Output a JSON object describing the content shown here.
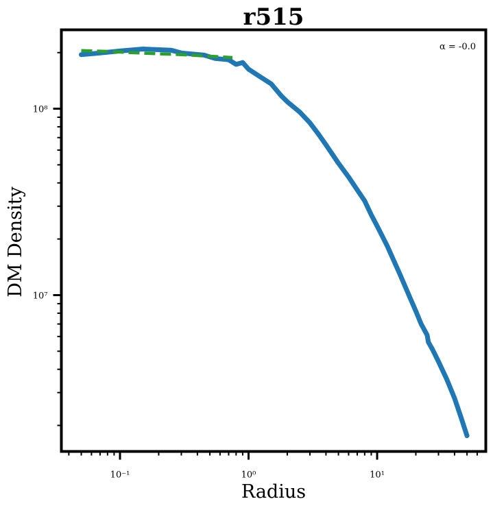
{
  "chart_data": {
    "type": "line",
    "title": "r515",
    "xlabel": "Radius",
    "ylabel": "DM Density",
    "xscale": "log",
    "yscale": "log",
    "xlim": [
      0.035,
      70
    ],
    "ylim": [
      1450000.0,
      265000000.0
    ],
    "grid": false,
    "annotation": "α = -0.0",
    "x_ticks": [
      {
        "value": 0.1,
        "label": "10⁻¹"
      },
      {
        "value": 1,
        "label": "10⁰"
      },
      {
        "value": 10,
        "label": "10¹"
      }
    ],
    "y_ticks": [
      {
        "value": 10000000,
        "label": "10⁷"
      },
      {
        "value": 100000000,
        "label": "10⁸"
      }
    ],
    "series": [
      {
        "color": "#1f77b4",
        "style": "solid",
        "x": [
          0.05,
          0.07,
          0.1,
          0.15,
          0.25,
          0.3,
          0.45,
          0.55,
          0.7,
          0.8,
          0.9,
          1.0,
          1.2,
          1.5,
          1.8,
          2.0,
          2.5,
          3.0,
          3.5,
          4.0,
          5.0,
          6.0,
          7.0,
          8.0,
          9.0,
          10.0,
          12.0,
          15.0,
          18.0,
          20.0,
          22.0,
          24.5,
          25.0,
          27.0,
          30.0,
          35.0,
          40.0,
          45.0,
          50.0
        ],
        "y": [
          195000000,
          199000000,
          204000000,
          209000000,
          206000000,
          199000000,
          194000000,
          186000000,
          183000000,
          173000000,
          177000000,
          163000000,
          150000000,
          136000000,
          117000000,
          109000000,
          96000000,
          84000000,
          73000000,
          64000000,
          51000000,
          43000000,
          36700000,
          32000000,
          27000000,
          23500000,
          18300000,
          13000000,
          9700000,
          8200000,
          7000000,
          6100000,
          5600000,
          5100000,
          4400000,
          3500000,
          2800000,
          2200000,
          1760000
        ]
      },
      {
        "color": "#2ca02c",
        "style": "dashed",
        "x": [
          0.05,
          0.08,
          0.12,
          0.2,
          0.3,
          0.45,
          0.6,
          0.75
        ],
        "y": [
          205000000,
          203000000,
          200000000,
          197000000,
          195000000,
          192000000,
          190000000,
          188000000
        ]
      }
    ]
  }
}
